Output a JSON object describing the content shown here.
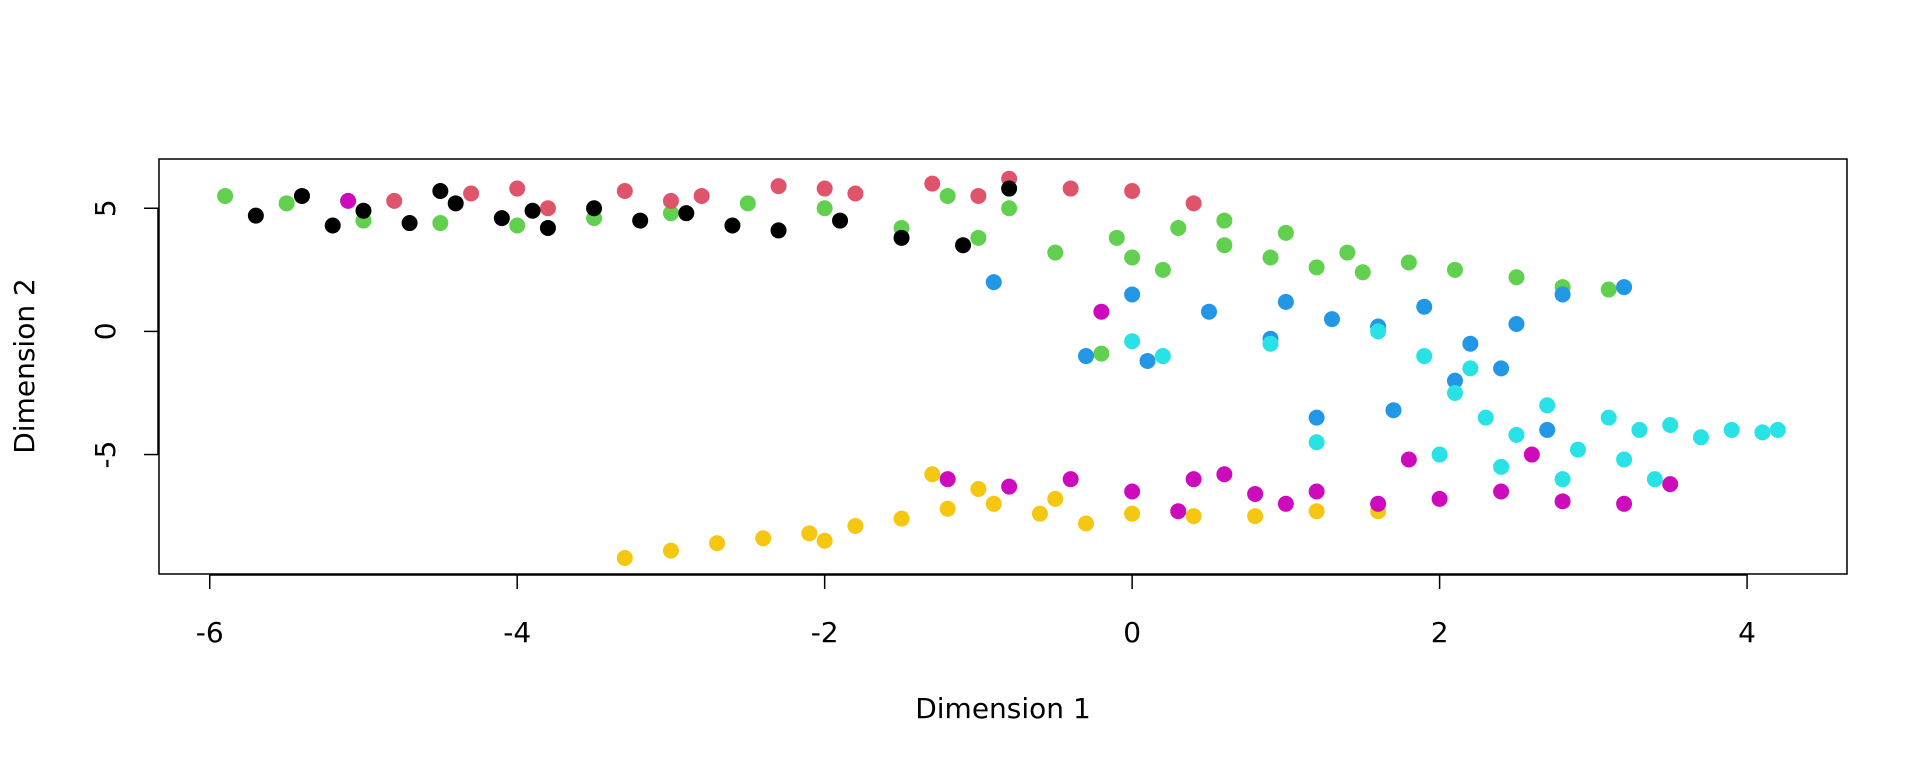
{
  "chart_data": {
    "type": "scatter",
    "x_label": "Dimension 1",
    "y_label": "Dimension 2",
    "xlim": [
      -6.33,
      4.65
    ],
    "ylim": [
      -9.85,
      7
    ],
    "xticks": [
      -6,
      -4,
      -2,
      0,
      2,
      4
    ],
    "yticks": [
      -5,
      0,
      5
    ],
    "series": [
      {
        "color": "#61D04F",
        "x": [
          -5.9,
          -5.5,
          -5,
          -4.5,
          -4,
          -3.5,
          -3,
          -2.5,
          -2,
          -1.5,
          -1,
          -0.5,
          0,
          0.3,
          0.6,
          0.9,
          1.2,
          1.5,
          1.8,
          2.1,
          2.5,
          2.8,
          3.1,
          -0.2,
          0.2,
          0.6,
          1.0,
          1.4,
          -0.8,
          -1.2,
          -0.1
        ],
        "values": [
          5.5,
          5.2,
          4.5,
          4.4,
          4.3,
          4.6,
          4.8,
          5.2,
          5.0,
          4.2,
          3.8,
          3.2,
          3.0,
          4.2,
          3.5,
          3.0,
          2.6,
          2.4,
          2.8,
          2.5,
          2.2,
          1.8,
          1.7,
          -0.9,
          2.5,
          4.5,
          4.0,
          3.2,
          5.0,
          5.5,
          3.8
        ]
      },
      {
        "color": "#DF536B",
        "x": [
          -4.8,
          -4.3,
          -3.8,
          -3.3,
          -2.8,
          -2.3,
          -1.8,
          -1.3,
          -0.8,
          -0.4,
          0,
          0.4,
          -4.0,
          -3.0,
          -2.0,
          -1.0
        ],
        "values": [
          5.3,
          5.6,
          5.0,
          5.7,
          5.5,
          5.9,
          5.6,
          6.0,
          6.2,
          5.8,
          5.7,
          5.2,
          5.8,
          5.3,
          5.8,
          5.5
        ]
      },
      {
        "color": "#000000",
        "x": [
          -5.7,
          -5.4,
          -5.0,
          -4.7,
          -4.4,
          -4.1,
          -3.8,
          -3.5,
          -3.2,
          -2.9,
          -2.6,
          -2.3,
          -1.9,
          -1.5,
          -1.1,
          -0.8,
          -5.2,
          -4.5,
          -3.9
        ],
        "values": [
          4.7,
          5.5,
          4.9,
          4.4,
          5.2,
          4.6,
          4.2,
          5.0,
          4.5,
          4.8,
          4.3,
          4.1,
          4.5,
          3.8,
          3.5,
          5.8,
          4.3,
          5.7,
          4.9
        ]
      },
      {
        "color": "#2297E6",
        "x": [
          -0.9,
          0,
          0.5,
          1.0,
          1.3,
          1.6,
          1.9,
          2.2,
          2.5,
          2.8,
          3.2,
          1.2,
          1.7,
          2.1,
          2.4,
          2.7,
          -0.3,
          0.1,
          0.9
        ],
        "values": [
          2.0,
          1.5,
          0.8,
          1.2,
          0.5,
          0.2,
          1.0,
          -0.5,
          0.3,
          1.5,
          1.8,
          -3.5,
          -3.2,
          -2.0,
          -1.5,
          -4.0,
          -1.0,
          -1.2,
          -0.3
        ]
      },
      {
        "color": "#28E2E5",
        "x": [
          0,
          0.2,
          1.6,
          1.9,
          2.1,
          2.3,
          2.5,
          2.7,
          2.9,
          3.1,
          3.3,
          3.5,
          3.7,
          3.9,
          4.1,
          4.2,
          2.0,
          2.4,
          2.8,
          3.2,
          1.2,
          0.9,
          3.4,
          2.2
        ],
        "values": [
          -0.4,
          -1.0,
          0.0,
          -1.0,
          -2.5,
          -3.5,
          -4.2,
          -3.0,
          -4.8,
          -3.5,
          -4.0,
          -3.8,
          -4.3,
          -4.0,
          -4.1,
          -4.0,
          -5.0,
          -5.5,
          -6.0,
          -5.2,
          -4.5,
          -0.5,
          -6.0,
          -1.5
        ]
      },
      {
        "color": "#F5C710",
        "x": [
          -3.3,
          -3.0,
          -2.7,
          -2.4,
          -2.1,
          -1.8,
          -1.5,
          -1.2,
          -0.9,
          -0.6,
          -0.3,
          0,
          0.4,
          0.8,
          1.2,
          1.6,
          -1.3,
          -1.0,
          -2.0,
          -0.5
        ],
        "values": [
          -9.2,
          -8.9,
          -8.6,
          -8.4,
          -8.2,
          -7.9,
          -7.6,
          -7.2,
          -7.0,
          -7.4,
          -7.8,
          -7.4,
          -7.5,
          -7.5,
          -7.3,
          -7.3,
          -5.8,
          -6.4,
          -8.5,
          -6.8
        ]
      },
      {
        "color": "#CD0BBC",
        "x": [
          -1.2,
          -0.8,
          -0.4,
          0,
          0.4,
          0.8,
          1.2,
          1.6,
          2.0,
          2.4,
          2.8,
          3.2,
          3.5,
          -5.1,
          -0.2,
          0.6,
          1.8,
          2.6,
          1.0,
          0.3
        ],
        "values": [
          -6.0,
          -6.3,
          -6.0,
          -6.5,
          -6.0,
          -6.6,
          -6.5,
          -7.0,
          -6.8,
          -6.5,
          -6.9,
          -7.0,
          -6.2,
          5.3,
          0.8,
          -5.8,
          -5.2,
          -5.0,
          -7.0,
          -7.3
        ]
      }
    ]
  }
}
